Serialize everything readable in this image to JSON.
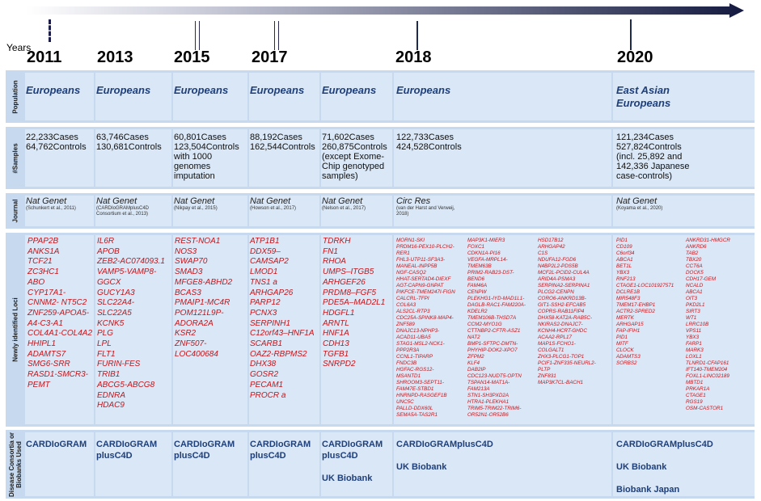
{
  "header": {
    "years_label": "Years",
    "years": [
      "2011",
      "2013",
      "2015",
      "2017",
      "2018",
      "2020"
    ]
  },
  "rows": {
    "population": "Population",
    "samples": "#Samples",
    "journal": "Journal",
    "loci": "Newly identified Loci",
    "consortia": "Disease Consortia or Biobanks Used"
  },
  "columns": [
    {
      "population": [
        "Europeans"
      ],
      "samples": [
        "22,233Cases",
        "64,762Controls"
      ],
      "journal": "Nat Genet",
      "citation": [
        "(Schunkert et al., 2011)"
      ],
      "loci": [
        "PPAP2B",
        "ANKS1A",
        "TCF21",
        "ZC3HC1",
        "ABO",
        "CYP17A1-",
        "CNNM2- NT5C2",
        "ZNF259-APOA5-",
        "A4-C3-A1",
        "COL4A1-COL4A2",
        "HHIPL1",
        "ADAMTS7",
        "SMG6-SRR",
        "RASD1-SMCR3-",
        "PEMT"
      ],
      "consortia": [
        "CARDIoGRAM"
      ]
    },
    {
      "population": [
        "Europeans"
      ],
      "samples": [
        "63,746Cases",
        "130,681Controls"
      ],
      "journal": "Nat Genet",
      "citation": [
        "(CARDIoGRAMplusC4D",
        "Consortium et al., 2013)"
      ],
      "loci": [
        "IL6R",
        "APOB",
        "ZEB2-AC074093.1",
        "VAMP5-VAMP8-",
        "GGCX",
        "GUCY1A3",
        "SLC22A4-",
        "SLC22A5",
        "KCNK5",
        "PLG",
        "LPL",
        "FLT1",
        "FURIN-FES",
        "TRIB1",
        "ABCG5-ABCG8",
        "EDNRA",
        "HDAC9"
      ],
      "consortia": [
        "CARDIoGRAM",
        "plusC4D"
      ]
    },
    {
      "population": [
        "Europeans"
      ],
      "samples": [
        "60,801Cases",
        "123,504Controls",
        "with 1000",
        "genomes",
        "imputation"
      ],
      "journal": "Nat Genet",
      "citation": [
        "(Nikpay et al., 2015)"
      ],
      "loci": [
        "REST-NOA1",
        "NOS3",
        "SWAP70",
        "SMAD3",
        "MFGE8-ABHD2",
        "BCAS3",
        "PMAIP1-MC4R",
        "POM121L9P-",
        "ADORA2A",
        "KSR2",
        "ZNF507-",
        "LOC400684"
      ],
      "consortia": [
        "CARDIoGRAM",
        "plusC4D"
      ]
    },
    {
      "population": [
        "Europeans"
      ],
      "samples": [
        "88,192Cases",
        "162,544Controls"
      ],
      "journal": "Nat Genet",
      "citation": [
        "(Howson et al., 2017)"
      ],
      "loci": [
        "ATP1B1",
        "DDX59–",
        "CAMSAP2",
        "LMOD1",
        "TNS1 a",
        "ARHGAP26",
        "PARP12",
        "PCNX3",
        "SERPINH1",
        "C12orf43–HNF1A",
        "SCARB1",
        "OAZ2-RBPMS2",
        "DHX38",
        "GOSR2",
        "PECAM1",
        "PROCR a"
      ],
      "consortia": [
        "CARDIoGRAM",
        "plusC4D"
      ]
    },
    {
      "population": [
        "Europeans"
      ],
      "samples": [
        "71,602Cases",
        "260,875Controls",
        "(except Exome-",
        "Chip genotyped",
        "samples)"
      ],
      "journal": "Nat Genet",
      "citation": [
        "(Nelson et al., 2017)"
      ],
      "loci": [
        "TDRKH",
        "FN1",
        "RHOA",
        "UMPS–ITGB5",
        "ARHGEF26",
        "PRDM8–FGF5",
        "PDE5A–MAD2L1",
        "HDGFL1",
        "ARNTL",
        "HNF1A",
        "CDH13",
        "TGFB1",
        "SNRPD2"
      ],
      "consortia": [
        "CARDIoGRAM",
        "plusC4D",
        "",
        "UK Biobank"
      ]
    },
    {
      "population": [
        "Europeans"
      ],
      "samples": [
        "122,733Cases",
        "424,528Controls"
      ],
      "journal": "Circ Res",
      "citation": [
        "(van der Harst and Verweij,",
        "2018)"
      ],
      "loci_col1": [
        "MORN1-SKI",
        "PRDM16-PEX10-PLCH2-",
        "RER1",
        "FHL3-UTP11-SF3A3-",
        "MANEAL-INPP5B",
        "NGF-CASQ2",
        "HHAT-SERTAD4-DIEXF",
        "AGT-CAPN9-GNPAT",
        "PIKFCE-TMEM247I-FIGN",
        "CALCRL-TFPI",
        "COL6A3",
        "ALS2CL-RTP3",
        "CDC25A-SPINK8-MAP4-",
        "ZNF589",
        "DNAJC13-NPHP3-",
        "ACAD11-UBA5",
        "STAG1-MSL2-NCK1-",
        "PPP2R3A",
        "CCNL1-TIPARP",
        "FNDC3B",
        "HGFAC-RGS12-",
        "MSANTD1",
        "SHROOM3-SEPT11-",
        "FAM47E-STBD1",
        "HNRNPD-RASGEF1B",
        "UNC5C",
        "PALLD-DDX60L",
        "SEMA5A-TAS2R1"
      ],
      "loci_col2": [
        "MAP3K1-MIER3",
        "FOXC1",
        "CDKN1A-PI16",
        "VEGFA-MRPL14-",
        "TMEM63B",
        "PRIM2-RAB23-DST-",
        "BEND6",
        "FAM46A",
        "CENPW",
        "PLEKHG1-IYD-MAD1L1-",
        "DAGLB-RAC1-FAM220A-",
        "KDELR2",
        "TMEM106B-THSD7A",
        "CCM2-MYO1G",
        "CTTNBP2-CFTR-ASZ1",
        "NAT2",
        "BMP1-SFTPC-DMTN-",
        "PHYHIP-DOK2-XPO7",
        "ZFPM2",
        "KLF4",
        "DAB2IP",
        "CDC123-NUDT5-OPTN",
        "TSPAN14-MAT1A-",
        "FAM213A",
        "STN1-SH3PXD2A",
        "HTRA1-PLEKHA1",
        "TRIM5-TRIM22-TRIM6-",
        "OR52N1-OR52B6"
      ],
      "loci_col3": [
        "HSD17B12",
        "ARHGAP42",
        "C1S",
        "NDUFA12-FGD6",
        "N4BP2L2-PDS5B",
        "MCF2L-PCID2-CUL4A",
        "ARID4A-PSMA3",
        "SERPINA2-SERPINA1",
        "PLCG2-CENPN",
        "CORO6-ANKRD13B-",
        "GIT1-SSH2-EFCAB5",
        "COPRS-RAB11FIP4",
        "DHX58-KAT2A-RAB5C-",
        "NKIRAS2-DNAJC7-",
        "KCNH4-HCRT-GHDC",
        "ACAA2-RPL17",
        "MAP1S-FCHO1-",
        "COLGALT1",
        "ZHX3-PLCG1-TOP1",
        "PCIF1-ZNF335-NEURL2-",
        "PLTP",
        "ZNF831",
        "MAP3K7CL-BACH1"
      ],
      "consortia": [
        "CARDIoGRAMplusC4D",
        "",
        "UK Biobank"
      ]
    },
    {
      "population": [
        "East Asian",
        "Europeans"
      ],
      "samples": [
        "121,234Cases",
        "527,824Controls",
        "(incl. 25,892 and",
        "142,336 Japanese",
        "case-controls)"
      ],
      "journal": "Nat Genet",
      "citation": [
        "(Koyama et al., 2020)"
      ],
      "loci_col1": [
        "PID1",
        "CD109",
        "C6orf34",
        "ABCA1",
        "BET1L",
        "YBX3",
        "RNF213",
        "CTAGE1-LOC101927571",
        "DCLRE1B",
        "MIR548F3",
        "TMEM17-EHBP1",
        "ACTR2-SPRED2",
        "MERTK",
        "ARHGAP15",
        "FAP-IFIH1",
        "PID1",
        "MITF",
        "CLOCK",
        "ADAMTS3",
        "SORBS2"
      ],
      "loci_col2": [
        "ANKRD31-HMGCR",
        "ANKRD6",
        "TAB2",
        "TBX20",
        "CCT6A",
        "DOCK5",
        "CDH17-GEM",
        "NCALD",
        "ABCA1",
        "OIT3",
        "PKD2L1",
        "SIRT3",
        "WT1",
        "LRRC10B",
        "VPS11",
        "YBX3",
        "FARP1",
        "MARK3",
        "LOXL1",
        "TLNRD1-CFAP161",
        "IFT140-TMEM204",
        "FOXL1-LINC02189",
        "MBTD1",
        "PRKAR1A",
        "CTAGE1",
        "RGS19",
        "OSM-CASTOR1"
      ],
      "consortia": [
        "CARDIoGRAMplusC4D",
        "",
        "UK Biobank",
        "",
        "Biobank Japan"
      ]
    }
  ]
}
